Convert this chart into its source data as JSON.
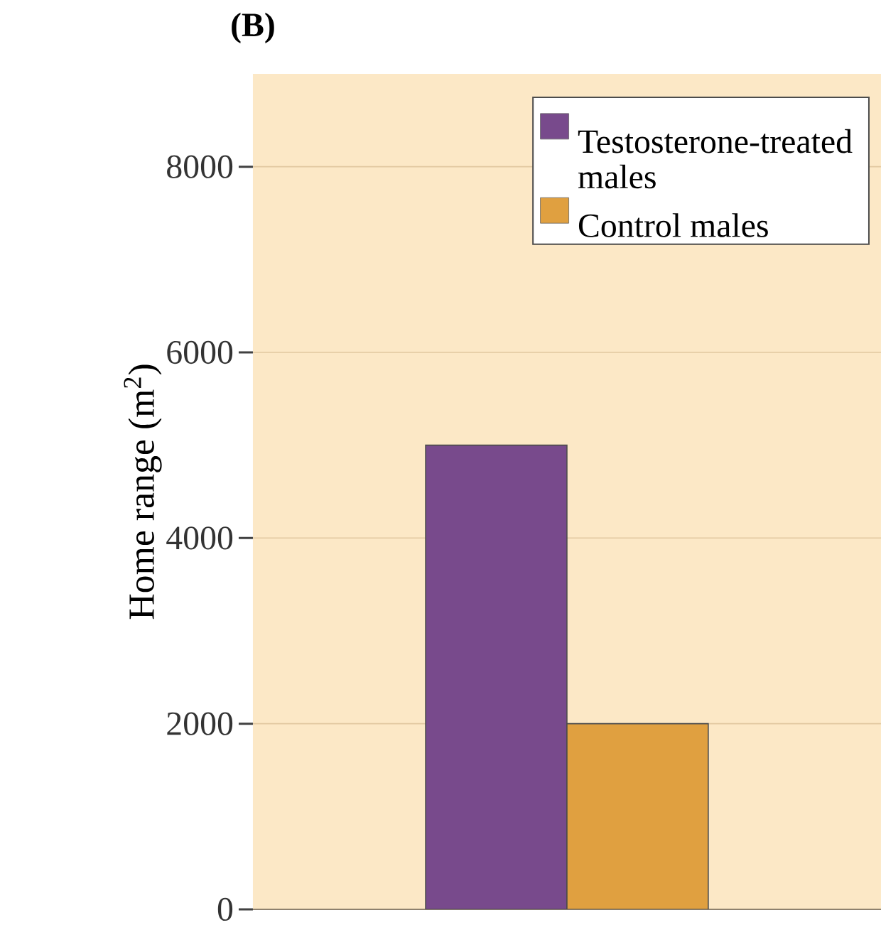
{
  "chart_data": {
    "type": "bar",
    "title": "**(B)**",
    "ylabel": "Home range (m$^{2}$)",
    "categories": [
      null
    ],
    "series": [
      {
        "name": "Testosterone-treated males",
        "color": "#784a8c",
        "values": [
          5000
        ]
      },
      {
        "name": "Control males",
        "color": "#e0a040",
        "values": [
          2000
        ]
      }
    ],
    "ylim": [
      0,
      9000
    ],
    "yticks": [
      0,
      2000,
      4000,
      6000,
      8000
    ],
    "grid": "y",
    "legend": "top right"
  }
}
